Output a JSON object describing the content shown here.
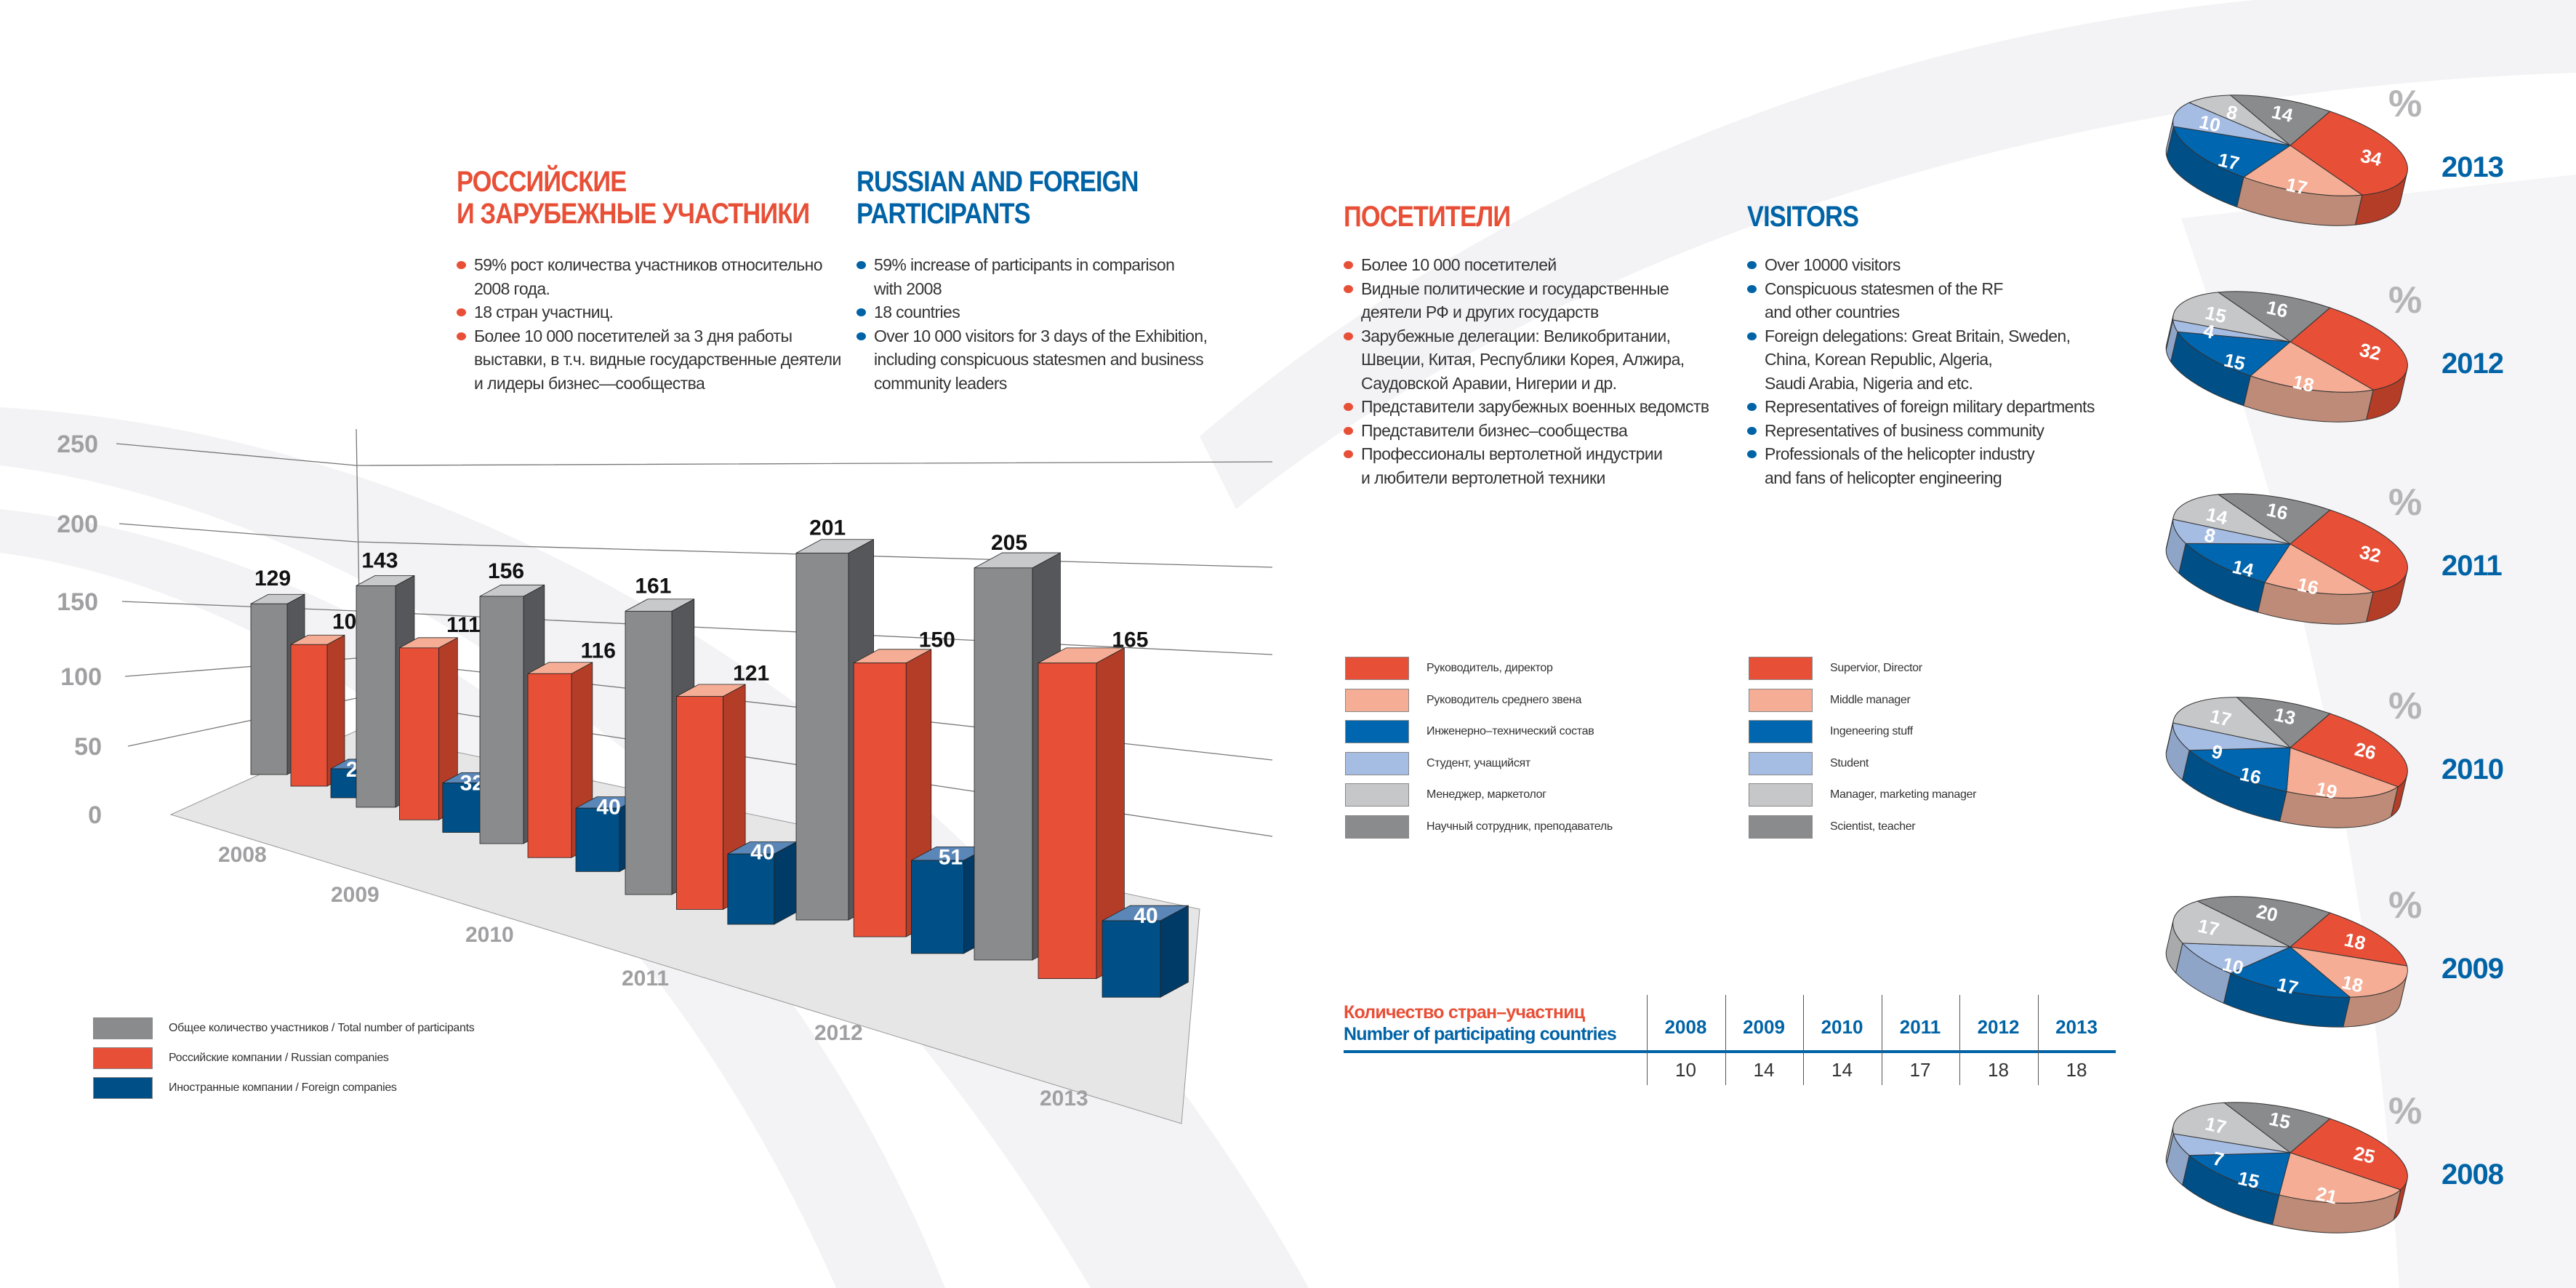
{
  "participants": {
    "heading_ru": "РОССИЙСКИЕ\nИ ЗАРУБЕЖНЫЕ УЧАСТНИКИ",
    "heading_en": "RUSSIAN AND FOREIGN\nPARTICIPANTS",
    "bullets_ru": [
      "59% рост количества участников относительно\n2008 года.",
      "18 стран участниц.",
      "Более 10 000 посетителей за 3 дня работы\nвыставки, в т.ч. видные государственные деятели\nи лидеры бизнес—сообщества"
    ],
    "bullets_en": [
      "59% increase of participants in comparison\nwith 2008",
      "18 countries",
      "Over 10 000 visitors for 3 days of the Exhibition,\nincluding conspicuous statesmen and business\ncommunity leaders"
    ]
  },
  "visitors": {
    "heading_ru": "ПОСЕТИТЕЛИ",
    "heading_en": "VISITORS",
    "bullets_ru": [
      "Более 10 000 посетителей",
      "Видные политические и государственные\nдеятели РФ и других государств",
      "Зарубежные делегации: Великобритании,\nШвеции, Китая, Республики Корея, Алжира,\nСаудовской Аравии, Нигерии и др.",
      "Представители зарубежных военных ведомств",
      "Представители бизнес–сообщества",
      "Профессионалы вертолетной индустрии\nи любители вертолетной техники"
    ],
    "bullets_en": [
      "Over 10000 visitors",
      "Conspicuous statesmen of the RF\nand other countries",
      "Foreign delegations: Great Britain, Sweden,\nChina, Korean Republic, Algeria,\nSaudi Arabia, Nigeria and etc.",
      "Representatives of foreign military departments",
      "Representatives of business community",
      "Professionals of the helicopter industry\nand fans of helicopter engineering"
    ]
  },
  "roles_legend": {
    "ru": [
      "Руководитель, директор",
      "Руководитель среднего звена",
      "Инженерно–технический состав",
      "Студент, учащийсят",
      "Менеджер, маркетолог",
      "Научный сотрудник, преподаватель"
    ],
    "en": [
      "Supervior, Director",
      "Middle manager",
      "Ingeneering stuff",
      "Student",
      "Manager, marketing manager",
      "Scientist, teacher"
    ]
  },
  "countries_table": {
    "title_ru": "Количество стран–участниц",
    "title_en": "Number of participating countries",
    "years": [
      "2008",
      "2009",
      "2010",
      "2011",
      "2012",
      "2013"
    ],
    "values": [
      "10",
      "14",
      "14",
      "17",
      "18",
      "18"
    ]
  },
  "colors": {
    "accent_red": "#e84f37",
    "accent_blue": "#0063a6",
    "bar_total": "#8a8b8d",
    "bar_russian": "#e84f37",
    "bar_foreign": "#004f87",
    "roles": [
      "#e84f37",
      "#f5ae95",
      "#0066b0",
      "#a6bde3",
      "#c6c7c9",
      "#8a8b8d"
    ],
    "roles_side": [
      "#b43d28",
      "#bd8b77",
      "#004f87",
      "#8fa5c8",
      "#a9aaac",
      "#6e6f71"
    ]
  },
  "chart_data": [
    {
      "type": "bar",
      "style": "3d-clustered",
      "categories": [
        "2008",
        "2009",
        "2010",
        "2011",
        "2012",
        "2013"
      ],
      "ylim": [
        0,
        250
      ],
      "yticks": [
        "0",
        "50",
        "100",
        "150",
        "200",
        "250"
      ],
      "grid": true,
      "legend_position": "bottom-left",
      "series": [
        {
          "name": "Общее количество участников / Total number of participants",
          "values": [
            129,
            143,
            156,
            161,
            201,
            205
          ]
        },
        {
          "name": "Российские компании / Russian companies",
          "values": [
            107,
            111,
            116,
            121,
            150,
            165
          ]
        },
        {
          "name": "Иностранные компании / Foreign companies",
          "values": [
            22,
            32,
            40,
            40,
            51,
            40
          ]
        }
      ]
    },
    {
      "type": "pie",
      "style": "3d",
      "unit_label": "%",
      "categories": [
        "Supervior, Director",
        "Middle manager",
        "Ingeneering stuff",
        "Student",
        "Manager, marketing manager",
        "Scientist, teacher"
      ],
      "pies": [
        {
          "year": "2013",
          "values": [
            34,
            17,
            17,
            10,
            8,
            14
          ]
        },
        {
          "year": "2012",
          "values": [
            32,
            18,
            15,
            4,
            15,
            16
          ]
        },
        {
          "year": "2011",
          "values": [
            32,
            16,
            14,
            8,
            14,
            16
          ]
        },
        {
          "year": "2010",
          "values": [
            26,
            19,
            16,
            9,
            17,
            13
          ]
        },
        {
          "year": "2009",
          "values": [
            18,
            18,
            17,
            10,
            17,
            20
          ]
        },
        {
          "year": "2008",
          "values": [
            25,
            21,
            15,
            7,
            17,
            15
          ]
        }
      ]
    }
  ]
}
